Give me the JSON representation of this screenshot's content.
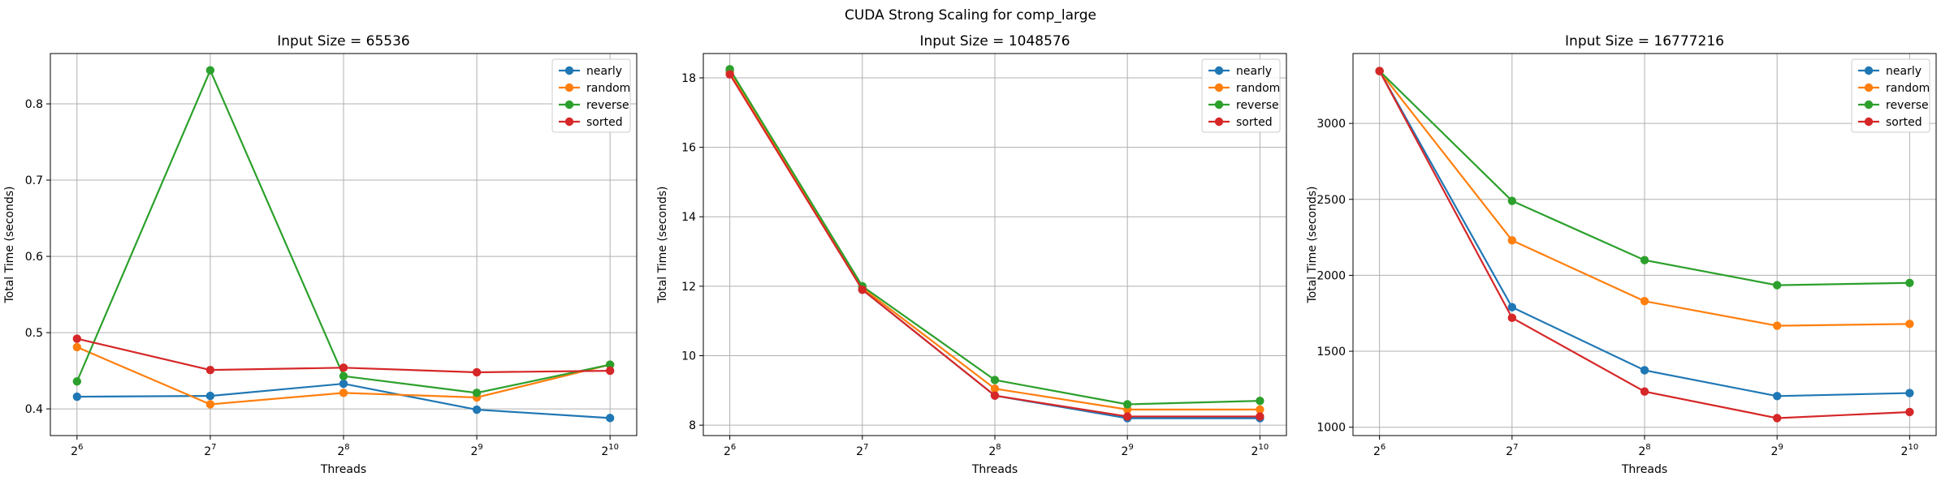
{
  "figure": {
    "suptitle": "CUDA Strong Scaling for comp_large"
  },
  "colors": {
    "nearly": "#1f77b4",
    "random": "#ff7f0e",
    "reverse": "#2ca02c",
    "sorted": "#d62728"
  },
  "chart_data": [
    {
      "type": "line",
      "title": "Input Size = 65536",
      "xlabel": "Threads",
      "ylabel": "Total Time (seconds)",
      "x": [
        64,
        128,
        256,
        512,
        1024
      ],
      "x_scale": "log2",
      "x_tick_labels": [
        {
          "base": "2",
          "exp": "6"
        },
        {
          "base": "2",
          "exp": "7"
        },
        {
          "base": "2",
          "exp": "8"
        },
        {
          "base": "2",
          "exp": "9"
        },
        {
          "base": "2",
          "exp": "10"
        }
      ],
      "ylim": [
        0.365,
        0.866
      ],
      "yticks": [
        0.4,
        0.5,
        0.6,
        0.7,
        0.8
      ],
      "ytick_labels": [
        "0.4",
        "0.5",
        "0.6",
        "0.7",
        "0.8"
      ],
      "grid": true,
      "legend_position": "top-right",
      "series": [
        {
          "name": "nearly",
          "values": [
            0.416,
            0.417,
            0.433,
            0.399,
            0.388
          ]
        },
        {
          "name": "random",
          "values": [
            0.481,
            0.406,
            0.421,
            0.415,
            0.458
          ]
        },
        {
          "name": "reverse",
          "values": [
            0.436,
            0.844,
            0.443,
            0.421,
            0.458
          ]
        },
        {
          "name": "sorted",
          "values": [
            0.492,
            0.451,
            0.454,
            0.448,
            0.45
          ]
        }
      ]
    },
    {
      "type": "line",
      "title": "Input Size = 1048576",
      "xlabel": "Threads",
      "ylabel": "Total Time (seconds)",
      "x": [
        64,
        128,
        256,
        512,
        1024
      ],
      "x_scale": "log2",
      "x_tick_labels": [
        {
          "base": "2",
          "exp": "6"
        },
        {
          "base": "2",
          "exp": "7"
        },
        {
          "base": "2",
          "exp": "8"
        },
        {
          "base": "2",
          "exp": "9"
        },
        {
          "base": "2",
          "exp": "10"
        }
      ],
      "ylim": [
        7.7,
        18.7
      ],
      "yticks": [
        8,
        10,
        12,
        14,
        16,
        18
      ],
      "ytick_labels": [
        "8",
        "10",
        "12",
        "14",
        "16",
        "18"
      ],
      "grid": true,
      "legend_position": "top-right",
      "series": [
        {
          "name": "nearly",
          "values": [
            18.2,
            11.9,
            8.85,
            8.2,
            8.2
          ]
        },
        {
          "name": "random",
          "values": [
            18.15,
            11.95,
            9.05,
            8.45,
            8.45
          ]
        },
        {
          "name": "reverse",
          "values": [
            18.25,
            12.0,
            9.3,
            8.6,
            8.7
          ]
        },
        {
          "name": "sorted",
          "values": [
            18.1,
            11.9,
            8.85,
            8.25,
            8.25
          ]
        }
      ]
    },
    {
      "type": "line",
      "title": "Input Size = 16777216",
      "xlabel": "Threads",
      "ylabel": "Total Time (seconds)",
      "x": [
        64,
        128,
        256,
        512,
        1024
      ],
      "x_scale": "log2",
      "x_tick_labels": [
        {
          "base": "2",
          "exp": "6"
        },
        {
          "base": "2",
          "exp": "7"
        },
        {
          "base": "2",
          "exp": "8"
        },
        {
          "base": "2",
          "exp": "9"
        },
        {
          "base": "2",
          "exp": "10"
        }
      ],
      "ylim": [
        945,
        3460
      ],
      "yticks": [
        1000,
        1500,
        2000,
        2500,
        3000
      ],
      "ytick_labels": [
        "1000",
        "1500",
        "2000",
        "2500",
        "3000"
      ],
      "grid": true,
      "legend_position": "top-right",
      "series": [
        {
          "name": "nearly",
          "values": [
            3345,
            1790,
            1375,
            1205,
            1225
          ]
        },
        {
          "name": "random",
          "values": [
            3345,
            2230,
            1830,
            1668,
            1680
          ]
        },
        {
          "name": "reverse",
          "values": [
            3345,
            2490,
            2100,
            1935,
            1950
          ]
        },
        {
          "name": "sorted",
          "values": [
            3345,
            1720,
            1235,
            1060,
            1100
          ]
        }
      ]
    }
  ]
}
